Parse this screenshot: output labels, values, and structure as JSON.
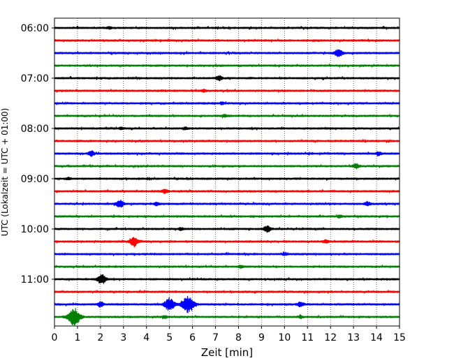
{
  "chart_data": {
    "type": "line",
    "subtype": "helicorder",
    "xlabel": "Zeit  [min]",
    "ylabel": "UTC (Lokalzeit = UTC + 01:00)",
    "xlim": [
      0,
      15
    ],
    "x_ticks": [
      0,
      1,
      2,
      3,
      4,
      5,
      6,
      7,
      8,
      9,
      10,
      11,
      12,
      13,
      14,
      15
    ],
    "vertical_grid": "dotted",
    "y_ticks": [
      "06:00",
      "07:00",
      "08:00",
      "09:00",
      "10:00",
      "11:00"
    ],
    "trace_interval_min": 15,
    "start_time": "06:00",
    "trace_colors": [
      "#000000",
      "#ff0000",
      "#0000ff",
      "#008000"
    ],
    "traces": [
      {
        "start": "06:00",
        "color": "#000000",
        "events": [
          {
            "x": 2.4,
            "amp": 0.12
          }
        ]
      },
      {
        "start": "06:15",
        "color": "#ff0000",
        "events": []
      },
      {
        "start": "06:30",
        "color": "#0000ff",
        "events": [
          {
            "x": 12.35,
            "amp": 0.5
          }
        ]
      },
      {
        "start": "06:45",
        "color": "#008000",
        "events": []
      },
      {
        "start": "07:00",
        "color": "#000000",
        "events": [
          {
            "x": 7.15,
            "amp": 0.3
          }
        ]
      },
      {
        "start": "07:15",
        "color": "#ff0000",
        "events": [
          {
            "x": 6.5,
            "amp": 0.12
          }
        ]
      },
      {
        "start": "07:30",
        "color": "#0000ff",
        "events": [
          {
            "x": 7.3,
            "amp": 0.15
          }
        ]
      },
      {
        "start": "07:45",
        "color": "#008000",
        "events": [
          {
            "x": 7.4,
            "amp": 0.15
          }
        ]
      },
      {
        "start": "08:00",
        "color": "#000000",
        "events": [
          {
            "x": 2.9,
            "amp": 0.12
          },
          {
            "x": 5.7,
            "amp": 0.15
          }
        ]
      },
      {
        "start": "08:15",
        "color": "#ff0000",
        "events": []
      },
      {
        "start": "08:30",
        "color": "#0000ff",
        "events": [
          {
            "x": 1.6,
            "amp": 0.3
          },
          {
            "x": 14.1,
            "amp": 0.2
          }
        ]
      },
      {
        "start": "08:45",
        "color": "#008000",
        "events": [
          {
            "x": 13.1,
            "amp": 0.3
          }
        ]
      },
      {
        "start": "09:00",
        "color": "#000000",
        "events": [
          {
            "x": 0.6,
            "amp": 0.12
          }
        ]
      },
      {
        "start": "09:15",
        "color": "#ff0000",
        "events": [
          {
            "x": 4.8,
            "amp": 0.25
          }
        ]
      },
      {
        "start": "09:30",
        "color": "#0000ff",
        "events": [
          {
            "x": 2.85,
            "amp": 0.45
          },
          {
            "x": 4.45,
            "amp": 0.2
          },
          {
            "x": 13.6,
            "amp": 0.25
          }
        ]
      },
      {
        "start": "09:45",
        "color": "#008000",
        "events": [
          {
            "x": 12.4,
            "amp": 0.15
          }
        ]
      },
      {
        "start": "10:00",
        "color": "#000000",
        "events": [
          {
            "x": 5.5,
            "amp": 0.15
          },
          {
            "x": 9.25,
            "amp": 0.4
          }
        ]
      },
      {
        "start": "10:15",
        "color": "#ff0000",
        "events": [
          {
            "x": 3.45,
            "amp": 0.55
          },
          {
            "x": 11.8,
            "amp": 0.2
          }
        ]
      },
      {
        "start": "10:30",
        "color": "#0000ff",
        "events": [
          {
            "x": 10.0,
            "amp": 0.15
          }
        ]
      },
      {
        "start": "10:45",
        "color": "#008000",
        "events": [
          {
            "x": 8.1,
            "amp": 0.15
          }
        ]
      },
      {
        "start": "11:00",
        "color": "#000000",
        "events": [
          {
            "x": 2.05,
            "amp": 0.6
          }
        ]
      },
      {
        "start": "11:15",
        "color": "#ff0000",
        "events": []
      },
      {
        "start": "11:30",
        "color": "#0000ff",
        "events": [
          {
            "x": 2.0,
            "amp": 0.3
          },
          {
            "x": 5.0,
            "amp": 0.8
          },
          {
            "x": 5.8,
            "amp": 1.0
          },
          {
            "x": 10.7,
            "amp": 0.3
          }
        ]
      },
      {
        "start": "11:45",
        "color": "#008000",
        "events": [
          {
            "x": 0.85,
            "amp": 1.0
          },
          {
            "x": 4.8,
            "amp": 0.15
          },
          {
            "x": 10.7,
            "amp": 0.15
          }
        ]
      }
    ]
  }
}
